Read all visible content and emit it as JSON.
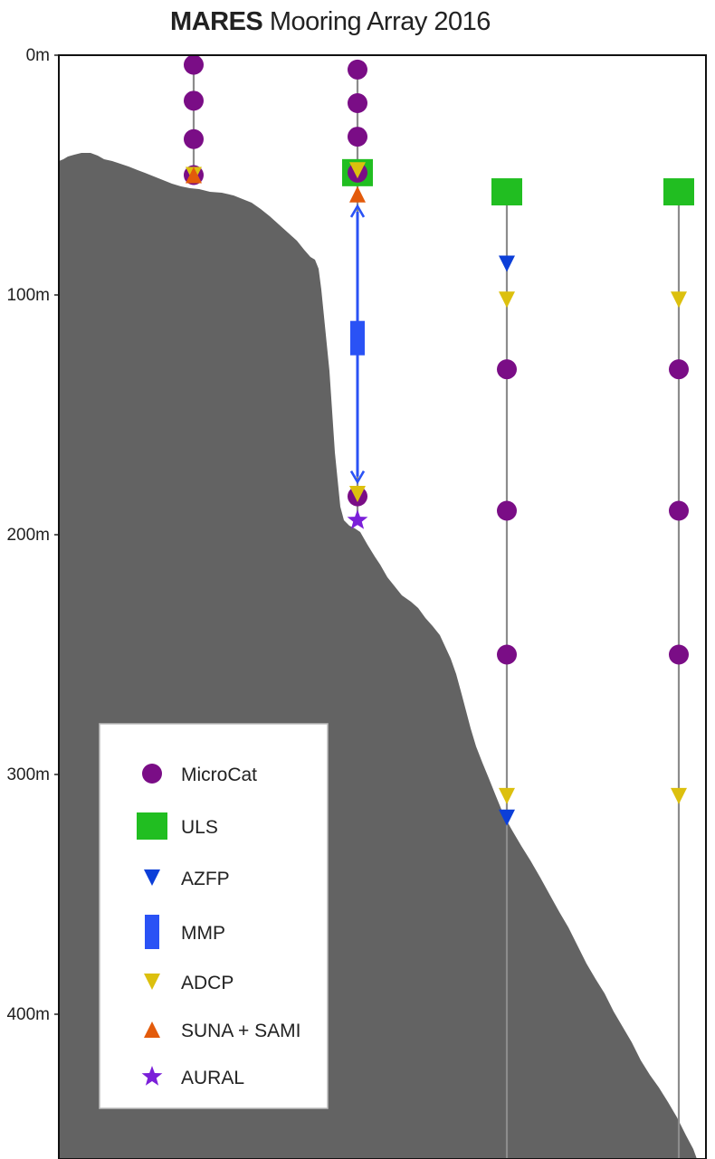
{
  "title": {
    "bold": "MARES",
    "rest": " Mooring Array 2016"
  },
  "colors": {
    "seafloor": "#636363",
    "line": "#8c8c8c",
    "profiler": "#2a52f5",
    "microcat": "#7a0d86",
    "uls": "#21be21",
    "azfp": "#0c3fd8",
    "mmp": "#2a52f5",
    "adcp": "#dcc00e",
    "suna_sami": "#e35b0b",
    "aural": "#7b1fd9"
  },
  "depth_axis": {
    "unit": "m",
    "ticks": [
      {
        "value": 0,
        "label": "0m"
      },
      {
        "value": 100,
        "label": "100m"
      },
      {
        "value": 200,
        "label": "200m"
      },
      {
        "value": 300,
        "label": "300m"
      },
      {
        "value": 400,
        "label": "400m"
      }
    ],
    "range": [
      0,
      460
    ]
  },
  "moorings": [
    {
      "instruments": [
        {
          "type": "microcat",
          "depth": 4
        },
        {
          "type": "microcat",
          "depth": 19
        },
        {
          "type": "microcat",
          "depth": 35
        },
        {
          "type": "microcat",
          "depth": 50
        },
        {
          "type": "adcp",
          "depth": 50
        },
        {
          "type": "suna_sami",
          "depth": 50
        }
      ]
    },
    {
      "instruments": [
        {
          "type": "microcat",
          "depth": 6
        },
        {
          "type": "microcat",
          "depth": 20
        },
        {
          "type": "microcat",
          "depth": 34
        },
        {
          "type": "uls",
          "depth": 49
        },
        {
          "type": "microcat",
          "depth": 49
        },
        {
          "type": "adcp",
          "depth": 48
        },
        {
          "type": "suna_sami",
          "depth": 58
        },
        {
          "type": "mmp",
          "depth": 118
        },
        {
          "type": "microcat",
          "depth": 184
        },
        {
          "type": "adcp",
          "depth": 183
        },
        {
          "type": "aural",
          "depth": 194
        }
      ],
      "profiler_range": [
        63,
        178
      ]
    },
    {
      "instruments": [
        {
          "type": "uls",
          "depth": 57
        },
        {
          "type": "azfp",
          "depth": 87
        },
        {
          "type": "adcp",
          "depth": 102
        },
        {
          "type": "microcat",
          "depth": 131
        },
        {
          "type": "microcat",
          "depth": 190
        },
        {
          "type": "microcat",
          "depth": 250
        },
        {
          "type": "adcp",
          "depth": 309
        },
        {
          "type": "azfp",
          "depth": 318
        }
      ]
    },
    {
      "instruments": [
        {
          "type": "uls",
          "depth": 57
        },
        {
          "type": "adcp",
          "depth": 102
        },
        {
          "type": "microcat",
          "depth": 131
        },
        {
          "type": "microcat",
          "depth": 190
        },
        {
          "type": "microcat",
          "depth": 250
        },
        {
          "type": "adcp",
          "depth": 309
        }
      ]
    }
  ],
  "legend": [
    {
      "type": "microcat",
      "label": "MicroCat"
    },
    {
      "type": "uls",
      "label": "ULS"
    },
    {
      "type": "azfp",
      "label": "AZFP"
    },
    {
      "type": "mmp",
      "label": "MMP"
    },
    {
      "type": "adcp",
      "label": "ADCP"
    },
    {
      "type": "suna_sami",
      "label": "SUNA + SAMI"
    },
    {
      "type": "aural",
      "label": "AURAL"
    }
  ]
}
